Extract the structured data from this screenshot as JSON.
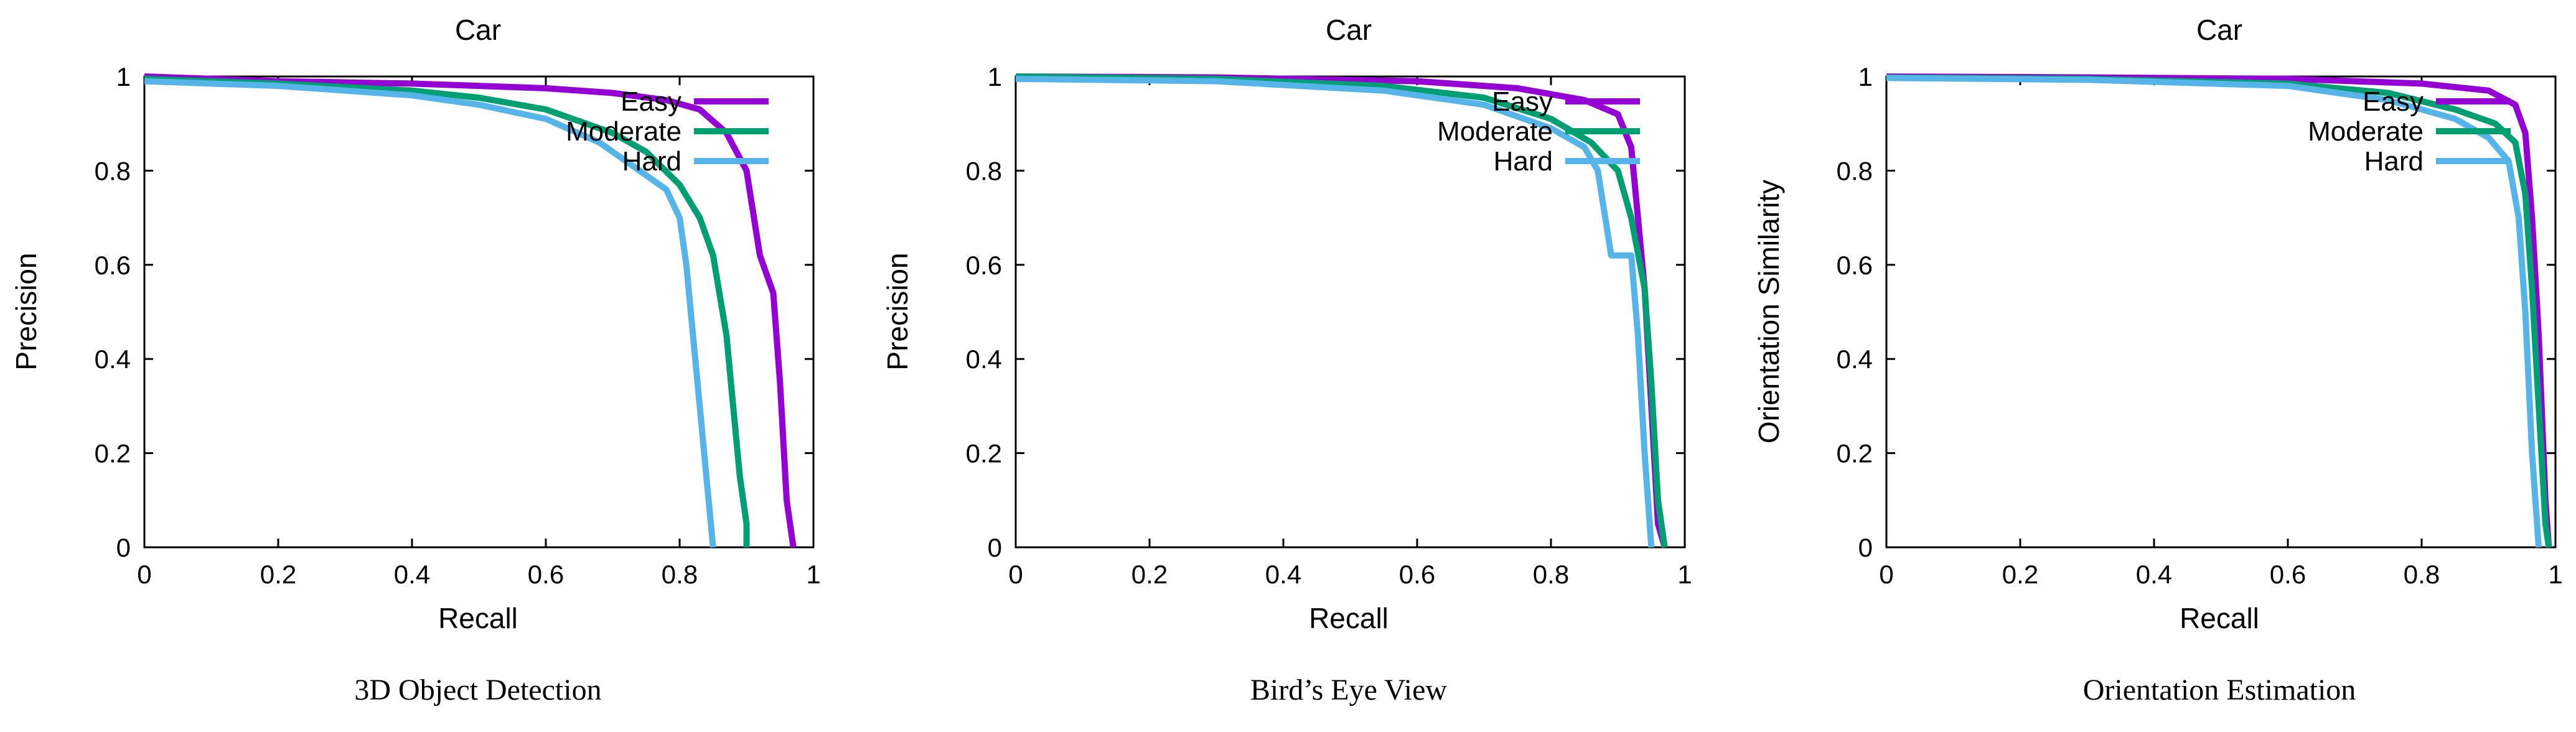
{
  "chart_data": [
    {
      "type": "line",
      "title": "Car",
      "caption": "3D Object Detection",
      "xlabel": "Recall",
      "ylabel": "Precision",
      "xlim": [
        0,
        1
      ],
      "ylim": [
        0,
        1
      ],
      "xticks": [
        "0",
        "0.2",
        "0.4",
        "0.6",
        "0.8",
        "1"
      ],
      "yticks": [
        "0",
        "0.2",
        "0.4",
        "0.6",
        "0.8",
        "1"
      ],
      "grid": false,
      "legend": "top-right",
      "series": [
        {
          "name": "Easy",
          "color": "#9400D3",
          "x": [
            0,
            0.2,
            0.4,
            0.6,
            0.7,
            0.78,
            0.83,
            0.87,
            0.9,
            0.92,
            0.94,
            0.95,
            0.96,
            0.97,
            0.97
          ],
          "y": [
            1,
            0.99,
            0.985,
            0.975,
            0.965,
            0.95,
            0.93,
            0.88,
            0.8,
            0.62,
            0.54,
            0.35,
            0.1,
            0,
            0
          ]
        },
        {
          "name": "Moderate",
          "color": "#009E73",
          "x": [
            0,
            0.2,
            0.4,
            0.5,
            0.6,
            0.7,
            0.75,
            0.8,
            0.83,
            0.85,
            0.87,
            0.88,
            0.89,
            0.9,
            0.9
          ],
          "y": [
            0.995,
            0.985,
            0.97,
            0.955,
            0.93,
            0.88,
            0.84,
            0.77,
            0.7,
            0.62,
            0.45,
            0.3,
            0.15,
            0.05,
            0
          ]
        },
        {
          "name": "Hard",
          "color": "#56B4E9",
          "x": [
            0,
            0.2,
            0.4,
            0.5,
            0.6,
            0.68,
            0.74,
            0.78,
            0.8,
            0.81,
            0.82,
            0.83,
            0.84,
            0.85
          ],
          "y": [
            0.99,
            0.98,
            0.96,
            0.94,
            0.91,
            0.86,
            0.8,
            0.76,
            0.7,
            0.6,
            0.45,
            0.3,
            0.15,
            0
          ]
        }
      ]
    },
    {
      "type": "line",
      "title": "Car",
      "caption": "Bird’s Eye View",
      "xlabel": "Recall",
      "ylabel": "Precision",
      "xlim": [
        0,
        1
      ],
      "ylim": [
        0,
        1
      ],
      "xticks": [
        "0",
        "0.2",
        "0.4",
        "0.6",
        "0.8",
        "1"
      ],
      "yticks": [
        "0",
        "0.2",
        "0.4",
        "0.6",
        "0.8",
        "1"
      ],
      "grid": false,
      "legend": "top-right",
      "series": [
        {
          "name": "Easy",
          "color": "#9400D3",
          "x": [
            0,
            0.3,
            0.6,
            0.75,
            0.85,
            0.9,
            0.92,
            0.93,
            0.94,
            0.95,
            0.96,
            0.97
          ],
          "y": [
            1,
            0.998,
            0.99,
            0.975,
            0.95,
            0.92,
            0.85,
            0.7,
            0.55,
            0.3,
            0.05,
            0
          ]
        },
        {
          "name": "Moderate",
          "color": "#009E73",
          "x": [
            0,
            0.3,
            0.55,
            0.7,
            0.8,
            0.86,
            0.9,
            0.92,
            0.94,
            0.95,
            0.96,
            0.97
          ],
          "y": [
            1,
            0.995,
            0.98,
            0.955,
            0.91,
            0.86,
            0.8,
            0.7,
            0.55,
            0.35,
            0.1,
            0
          ]
        },
        {
          "name": "Hard",
          "color": "#56B4E9",
          "x": [
            0,
            0.3,
            0.55,
            0.7,
            0.8,
            0.85,
            0.87,
            0.89,
            0.9,
            0.92,
            0.93,
            0.94,
            0.95
          ],
          "y": [
            0.995,
            0.99,
            0.97,
            0.94,
            0.89,
            0.85,
            0.8,
            0.62,
            0.62,
            0.62,
            0.45,
            0.2,
            0
          ]
        }
      ]
    },
    {
      "type": "line",
      "title": "Car",
      "caption": "Orientation Estimation",
      "xlabel": "Recall",
      "ylabel": "Orientation Similarity",
      "xlim": [
        0,
        1
      ],
      "ylim": [
        0,
        1
      ],
      "xticks": [
        "0",
        "0.2",
        "0.4",
        "0.6",
        "0.8",
        "1"
      ],
      "yticks": [
        "0",
        "0.2",
        "0.4",
        "0.6",
        "0.8",
        "1"
      ],
      "grid": false,
      "legend": "top-right",
      "series": [
        {
          "name": "Easy",
          "color": "#9400D3",
          "x": [
            0,
            0.3,
            0.6,
            0.8,
            0.9,
            0.94,
            0.955,
            0.965,
            0.975,
            0.985,
            0.99
          ],
          "y": [
            1,
            0.998,
            0.995,
            0.985,
            0.97,
            0.94,
            0.88,
            0.7,
            0.45,
            0.1,
            0
          ]
        },
        {
          "name": "Moderate",
          "color": "#009E73",
          "x": [
            0,
            0.3,
            0.6,
            0.75,
            0.85,
            0.91,
            0.94,
            0.955,
            0.965,
            0.975,
            0.985,
            0.99
          ],
          "y": [
            0.998,
            0.995,
            0.985,
            0.965,
            0.93,
            0.9,
            0.86,
            0.75,
            0.55,
            0.3,
            0.05,
            0
          ]
        },
        {
          "name": "Hard",
          "color": "#56B4E9",
          "x": [
            0,
            0.3,
            0.6,
            0.75,
            0.85,
            0.9,
            0.93,
            0.945,
            0.955,
            0.965,
            0.975
          ],
          "y": [
            0.997,
            0.993,
            0.98,
            0.95,
            0.91,
            0.87,
            0.82,
            0.7,
            0.5,
            0.2,
            0
          ]
        }
      ]
    }
  ]
}
